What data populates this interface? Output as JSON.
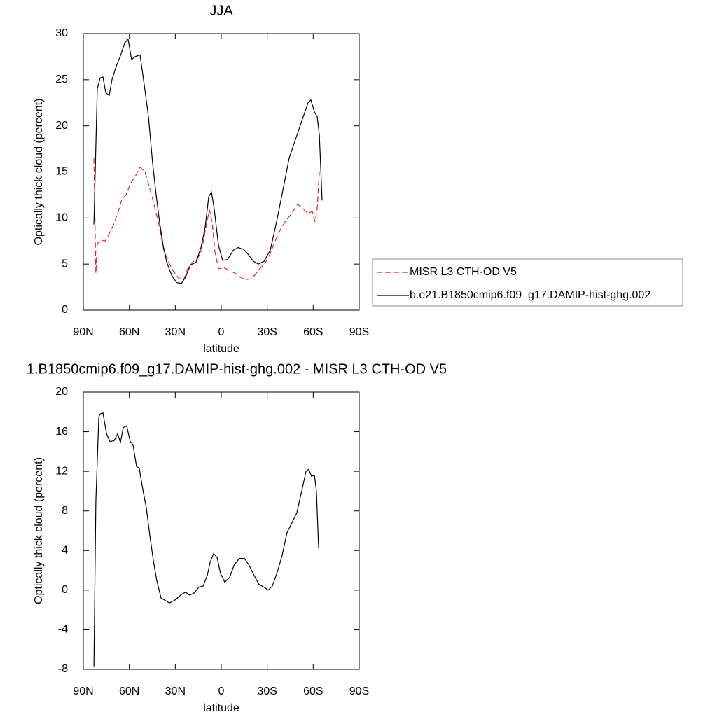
{
  "chart_data": [
    {
      "type": "line",
      "title": "JJA",
      "xlabel": "latitude",
      "ylabel": "Optically thick cloud (percent)",
      "xlim": [
        90,
        -90
      ],
      "xticks": [
        {
          "value": 90,
          "label": "90N"
        },
        {
          "value": 60,
          "label": "60N"
        },
        {
          "value": 30,
          "label": "30N"
        },
        0,
        {
          "value": -30,
          "label": "30S"
        },
        {
          "value": -60,
          "label": "60S"
        },
        {
          "value": -90,
          "label": "90S"
        }
      ],
      "ylim": [
        0,
        30
      ],
      "yticks": [
        0,
        5,
        10,
        15,
        20,
        25,
        30
      ],
      "legend": "right",
      "series": [
        {
          "name": "MISR L3 CTH-OD V5",
          "color": "#e8202a",
          "dash": true,
          "x": [
            83.1,
            81.8,
            80.9,
            78.1,
            75.8,
            73.1,
            70.4,
            67.6,
            64.9,
            62.1,
            59.4,
            56.2,
            53,
            49.8,
            47.1,
            43.9,
            40.7,
            37.5,
            34.3,
            31.1,
            27.9,
            24.7,
            21.9,
            18.7,
            15.5,
            12.8,
            10,
            7.7,
            5.9,
            4.1,
            1.8,
            -1.8,
            -5.5,
            -9.1,
            -12.3,
            -15.5,
            -19.2,
            -21.9,
            -25.1,
            -28.3,
            -31.5,
            -35.2,
            -38.8,
            -42.5,
            -46.1,
            -49.8,
            -53.4,
            -56.6,
            -59.4,
            -61.2,
            -62.6,
            -64
          ],
          "values": [
            16.5,
            4,
            7.2,
            7.6,
            7.5,
            8.3,
            9.2,
            10.5,
            12,
            12.5,
            13.7,
            14.5,
            15.5,
            15,
            13.5,
            11.5,
            9.3,
            6.5,
            5.2,
            4.2,
            3.5,
            3.2,
            4.5,
            5.2,
            5.6,
            6.5,
            9,
            10.9,
            9.5,
            6.3,
            4.5,
            4.6,
            4.3,
            4,
            3.6,
            3.3,
            3.4,
            3.8,
            4.5,
            5,
            6,
            7.5,
            8.8,
            9.8,
            10.5,
            11.5,
            11,
            10.5,
            10.7,
            9.6,
            11,
            15
          ]
        },
        {
          "name": "b.e21.B1850cmip6.f09_g17.DAMIP-hist-ghg.002",
          "color": "#000000",
          "dash": false,
          "x": [
            83.1,
            80.9,
            79,
            77.2,
            75.4,
            73.1,
            71.3,
            68.5,
            65.8,
            63,
            60.8,
            58.5,
            56.2,
            53,
            50.3,
            47.5,
            44.8,
            42.5,
            40.2,
            37.9,
            35.6,
            32.4,
            29.2,
            26,
            23.3,
            20.1,
            16.5,
            13.2,
            10.5,
            8.2,
            6.4,
            4.6,
            1.8,
            -0.9,
            -4.1,
            -7.8,
            -11,
            -14.6,
            -17.8,
            -21,
            -24.2,
            -27.9,
            -32,
            -36,
            -40.2,
            -44.3,
            -48.4,
            -52.5,
            -56.6,
            -58.5,
            -60.8,
            -62.6,
            -64,
            -65.8
          ],
          "values": [
            9.3,
            24,
            25.2,
            25.3,
            23.6,
            23.3,
            25,
            26.5,
            27.6,
            29,
            29.4,
            27.2,
            27.5,
            27.7,
            24.5,
            21,
            16,
            12.5,
            9.5,
            7,
            5.2,
            3.8,
            3,
            2.9,
            3.6,
            4.9,
            5.2,
            6.8,
            9,
            12.3,
            12.8,
            11,
            7,
            5.4,
            5.5,
            6.5,
            6.8,
            6.6,
            6,
            5.3,
            5,
            5.3,
            6.5,
            9.5,
            13,
            16.5,
            18.5,
            20.5,
            22.5,
            22.8,
            21.5,
            21,
            19,
            11.9
          ]
        }
      ]
    },
    {
      "type": "line",
      "title": "1.B1850cmip6.f09_g17.DAMIP-hist-ghg.002 - MISR L3 CTH-OD V5",
      "xlabel": "latitude",
      "ylabel": "Optically thick cloud (percent)",
      "xlim": [
        90,
        -90
      ],
      "xticks": [
        {
          "value": 90,
          "label": "90N"
        },
        {
          "value": 60,
          "label": "60N"
        },
        {
          "value": 30,
          "label": "30N"
        },
        0,
        {
          "value": -30,
          "label": "30S"
        },
        {
          "value": -60,
          "label": "60S"
        },
        {
          "value": -90,
          "label": "90S"
        }
      ],
      "ylim": [
        -8,
        20
      ],
      "yticks": [
        -8,
        -4,
        0,
        4,
        8,
        12,
        16,
        20
      ],
      "series": [
        {
          "color": "#000000",
          "dash": false,
          "x": [
            83.1,
            81.8,
            79.9,
            79,
            77.2,
            74.9,
            72.6,
            69.9,
            67.6,
            65.8,
            64,
            61.7,
            59.4,
            57.6,
            55.3,
            53.5,
            51.2,
            48.9,
            46.6,
            44.3,
            42.1,
            39.3,
            37,
            33.8,
            30.2,
            26.5,
            23.3,
            20.6,
            17.8,
            14.6,
            11.9,
            9.1,
            7.3,
            5,
            2.7,
            0.5,
            -2.3,
            -5.5,
            -8.6,
            -11.9,
            -15.1,
            -18.2,
            -21.4,
            -24.6,
            -27.9,
            -30.6,
            -33.3,
            -36.5,
            -39.7,
            -42.9,
            -46.1,
            -49.3,
            -52.5,
            -55.3,
            -57.1,
            -58.9,
            -60.8,
            -62.1,
            -63.5
          ],
          "values": [
            -7.7,
            9,
            17.5,
            17.8,
            17.9,
            15.8,
            15,
            15.1,
            15.8,
            14.9,
            16.4,
            16.6,
            15,
            14.7,
            12.5,
            12.3,
            10.2,
            8.3,
            5.5,
            3,
            1,
            -0.8,
            -1,
            -1.3,
            -1,
            -0.5,
            -0.2,
            -0.5,
            -0.3,
            0.3,
            0.4,
            1.5,
            2.8,
            3.7,
            3.3,
            1.7,
            0.8,
            1.3,
            2.6,
            3.2,
            3.2,
            2.5,
            1.5,
            0.6,
            0.3,
            0,
            0.4,
            1.8,
            3.5,
            5.8,
            6.8,
            7.8,
            10,
            12,
            12.2,
            11.5,
            11.6,
            10,
            4.3
          ]
        }
      ]
    }
  ]
}
